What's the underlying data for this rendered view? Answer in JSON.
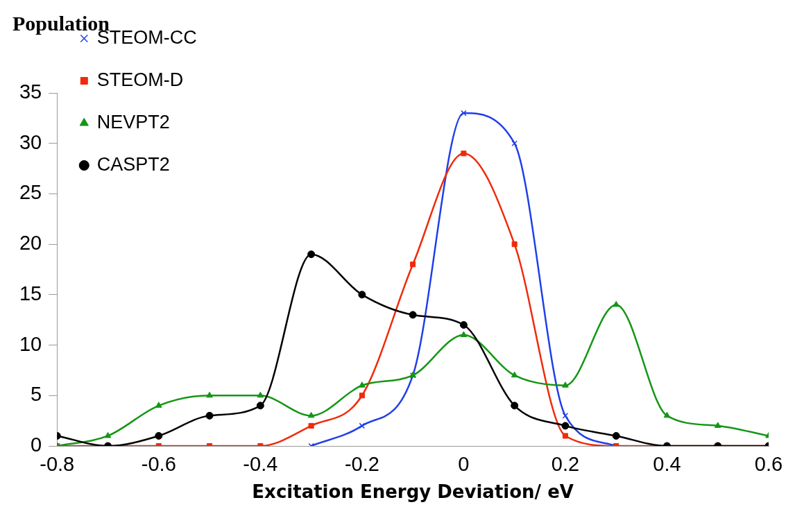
{
  "chart_data": {
    "type": "line",
    "title": "Population",
    "xlabel": "Excitation Energy Deviation/ eV",
    "x": [
      -0.8,
      -0.7,
      -0.6,
      -0.5,
      -0.4,
      -0.3,
      -0.2,
      -0.1,
      0,
      0.1,
      0.2,
      0.3,
      0.4,
      0.5,
      0.6
    ],
    "xlim": [
      -0.8,
      0.6
    ],
    "xticks": [
      -0.8,
      -0.6,
      -0.4,
      -0.2,
      0,
      0.2,
      0.4,
      0.6
    ],
    "ylim": [
      0,
      35
    ],
    "yticks": [
      0,
      5,
      10,
      15,
      20,
      25,
      30,
      35
    ],
    "grid": false,
    "legend": "top left",
    "series": [
      {
        "name": "STEOM-CC",
        "color": "#1f3fe8",
        "marker": "cross",
        "values": [
          null,
          null,
          null,
          null,
          null,
          0,
          2,
          7,
          33,
          30,
          3,
          0,
          null,
          null,
          null
        ]
      },
      {
        "name": "STEOM-D",
        "color": "#f02a0a",
        "marker": "square",
        "values": [
          0,
          0,
          0,
          0,
          0,
          2,
          5,
          18,
          29,
          20,
          1,
          0,
          0,
          0,
          0
        ]
      },
      {
        "name": "NEVPT2",
        "color": "#149614",
        "marker": "triangle",
        "values": [
          0,
          1,
          4,
          5,
          5,
          3,
          6,
          7,
          11,
          7,
          6,
          14,
          3,
          2,
          1
        ]
      },
      {
        "name": "CASPT2",
        "color": "#000000",
        "marker": "circle",
        "values": [
          1,
          0,
          1,
          3,
          4,
          19,
          15,
          13,
          12,
          4,
          2,
          1,
          0,
          0,
          0
        ]
      }
    ]
  }
}
